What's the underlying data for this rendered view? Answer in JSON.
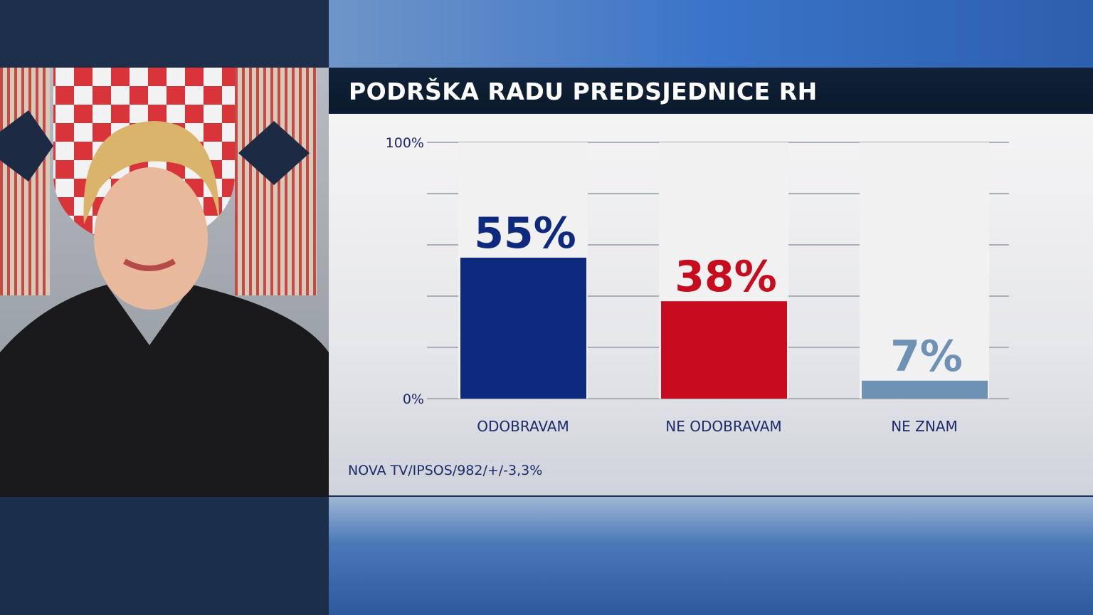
{
  "title": "PODRŠKA RADU PREDSJEDNICE RH",
  "source": "NOVA TV/IPSOS/982/+/-3,3%",
  "photo": {
    "description_icon": "person-photo"
  },
  "chart_data": {
    "type": "bar",
    "title": "PODRŠKA RADU PREDSJEDNICE RH",
    "categories": [
      "ODOBRAVAM",
      "NE ODOBRAVAM",
      "NE ZNAM"
    ],
    "values": [
      55,
      38,
      7
    ],
    "value_labels": [
      "55%",
      "38%",
      "7%"
    ],
    "colors": [
      "#0e2a7f",
      "#c80c1e",
      "#6e92b4"
    ],
    "ylim": [
      0,
      100
    ],
    "y_tick_labels": [
      "0%",
      "100%"
    ],
    "grid": true,
    "grid_step": 20,
    "xlabel": "",
    "ylabel": ""
  }
}
